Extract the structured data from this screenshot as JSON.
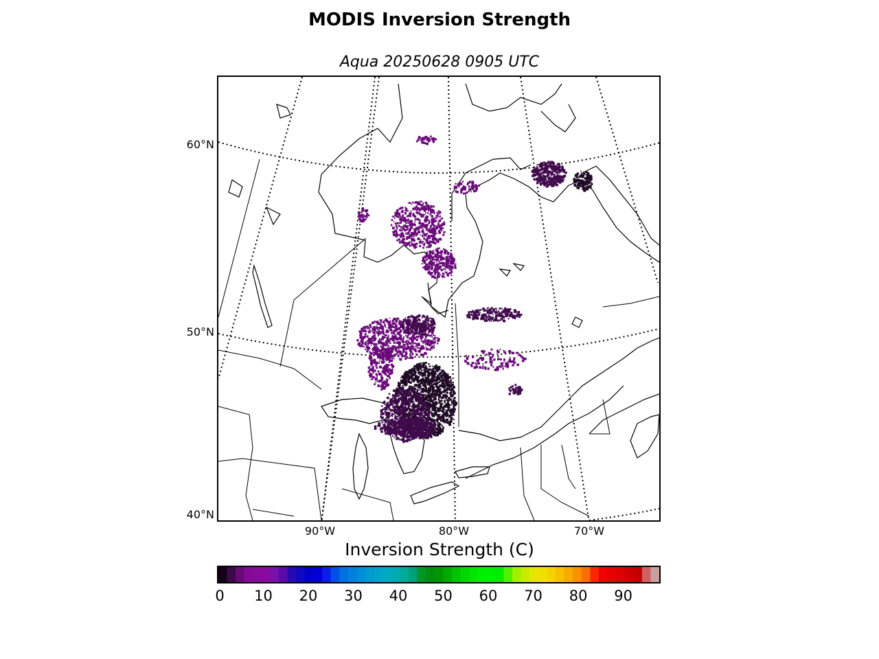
{
  "header": {
    "title": "MODIS Inversion Strength",
    "subtitle": "Aqua 20250628 0905 UTC"
  },
  "map": {
    "lat_labels": [
      "60°N",
      "50°N",
      "40°N"
    ],
    "lon_labels": [
      "90°W",
      "80°W",
      "70°W"
    ],
    "field": "Inversion Strength",
    "units": "C"
  },
  "colorbar": {
    "title": "Inversion Strength (C)",
    "min": 0,
    "max": 98,
    "ticks": [
      "0",
      "10",
      "20",
      "30",
      "40",
      "50",
      "60",
      "70",
      "80",
      "90"
    ],
    "tick_values": [
      0,
      10,
      20,
      30,
      40,
      50,
      60,
      70,
      80,
      90
    ],
    "colors": [
      "#14001a",
      "#3c0a46",
      "#6a0a7a",
      "#820a96",
      "#880a9a",
      "#8a0aa0",
      "#7812a6",
      "#5a0aa8",
      "#2a08b0",
      "#1008c0",
      "#0000c8",
      "#0000d2",
      "#0a1ee6",
      "#0050e6",
      "#0070e0",
      "#0080dc",
      "#008ed8",
      "#009ad0",
      "#00a4c8",
      "#00aac0",
      "#00aaae",
      "#00aa98",
      "#00a078",
      "#009628",
      "#008e10",
      "#009600",
      "#00aa00",
      "#00c400",
      "#00d600",
      "#00e600",
      "#00ee00",
      "#00f000",
      "#00ec00",
      "#50f000",
      "#a0f000",
      "#c8ec00",
      "#e6e600",
      "#f0e000",
      "#f8d200",
      "#f8c000",
      "#f8aa00",
      "#f89000",
      "#f87000",
      "#f82800",
      "#f00000",
      "#e60000",
      "#dc0000",
      "#cc0000",
      "#c00000",
      "#d06060",
      "#c8a0a0"
    ],
    "color_names": [
      "inversion-colors"
    ]
  },
  "overlay_colors": {
    "dark": "#1e0a24",
    "mid": "#400a4c",
    "light": "#6a0a7a"
  }
}
